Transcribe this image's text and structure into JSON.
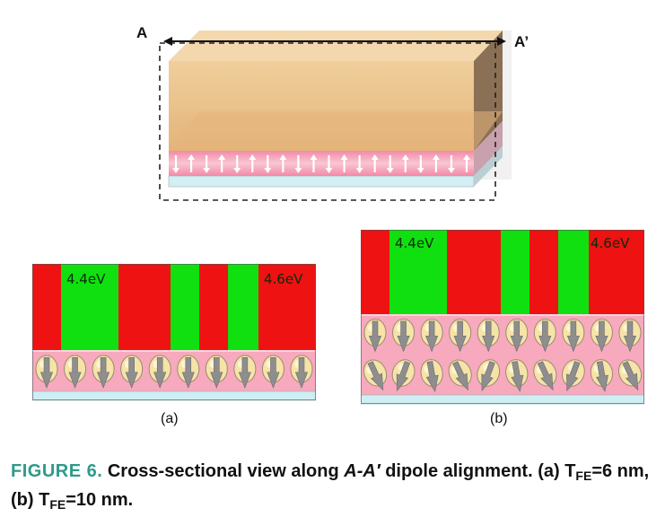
{
  "top_diagram": {
    "label_left": "A",
    "label_right": "A’"
  },
  "panel_a": {
    "label": "(a)",
    "wf_left": "4.4eV",
    "wf_right": "4.6eV",
    "stripe_pattern": [
      "red",
      "green",
      "red",
      "green",
      "red",
      "green",
      "red"
    ],
    "dipole_rows": 1
  },
  "panel_b": {
    "label": "(b)",
    "wf_left": "4.4eV",
    "wf_right": "4.6eV",
    "stripe_pattern": [
      "red",
      "green",
      "red",
      "green",
      "red",
      "green",
      "red"
    ],
    "dipole_rows": 2
  },
  "caption": {
    "figure_label": "FIGURE 6.",
    "text_1": "Cross-sectional view along",
    "italic_term": "A-A′",
    "text_2": "dipole alignment. (a) T",
    "sub_1": "FE",
    "text_3": "=6 nm, (b) T",
    "sub_2": "FE",
    "text_4": "=10 nm."
  },
  "colors": {
    "red": "#ee1212",
    "green": "#10e010",
    "pink": "#f7a9bd",
    "cyan": "#cdeef3",
    "gold_top": "#e9c58f",
    "caption_accent": "#2e9a8a"
  }
}
